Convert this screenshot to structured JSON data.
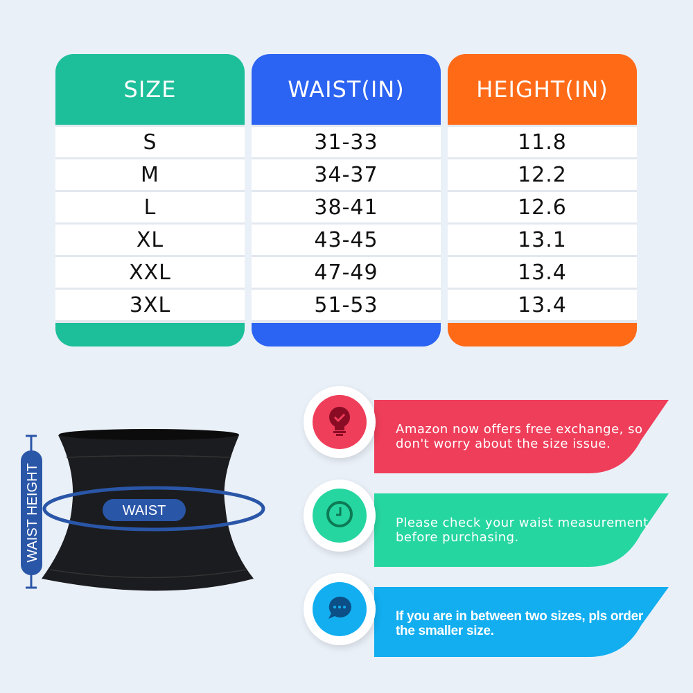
{
  "size_chart": {
    "columns": [
      {
        "header": "SIZE",
        "color": "#1dbf9a",
        "values": [
          "S",
          "M",
          "L",
          "XL",
          "XXL",
          "3XL"
        ]
      },
      {
        "header": "WAIST(IN)",
        "color": "#2b63f2",
        "values": [
          "31-33",
          "34-37",
          "38-41",
          "43-45",
          "47-49",
          "51-53"
        ]
      },
      {
        "header": "HEIGHT(IN)",
        "color": "#ff6a17",
        "values": [
          "11.8",
          "12.2",
          "12.6",
          "13.1",
          "13.4",
          "13.4"
        ]
      }
    ]
  },
  "diagram": {
    "height_label": "WAIST HEIGHT",
    "waist_label": "WAIST",
    "accent": "#2a56a8"
  },
  "tips": [
    {
      "icon": "lightbulb-check-icon",
      "color": "#ef3e5a",
      "text_line1": "Amazon now offers free exchange, so",
      "text_line2": "don't worry about the size issue."
    },
    {
      "icon": "clock-icon",
      "color": "#26d6a0",
      "text_line1": "Please check your waist measurement",
      "text_line2": "before purchasing."
    },
    {
      "icon": "chat-bubble-icon",
      "color": "#12aef0",
      "text_line1": "If you are in between two sizes, pls order",
      "text_line2": "the smaller size."
    }
  ]
}
